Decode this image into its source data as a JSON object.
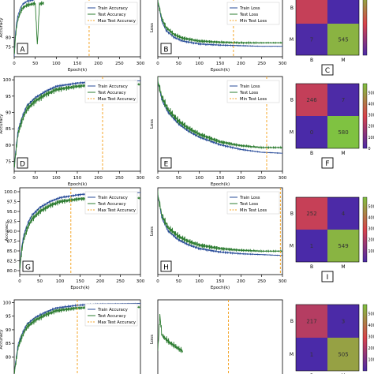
{
  "colors": {
    "train": "#2a4d9a",
    "test": "#2e7d32",
    "vline": "#f4a62a",
    "cm_high": "#7fc241",
    "cm_mid": "#d9434b",
    "cm_low": "#4a2aa8"
  },
  "chart_data": [
    {
      "id": "A",
      "type": "line",
      "panel_label": "A",
      "xlabel": "Epoch(k)",
      "ylabel": "Accuracy",
      "xlim": [
        0,
        300
      ],
      "ylim": [
        70,
        100
      ],
      "xticks": [
        "0",
        "50",
        "100",
        "150",
        "200",
        "250",
        "300"
      ],
      "yticks": [
        "75",
        "80"
      ],
      "legend": [
        "Train Accuracy",
        "Test Accuracy",
        "Max Test Accuracy"
      ],
      "vline_x": 178,
      "series": [
        {
          "name": "Train Accuracy",
          "x": [
            0,
            3,
            6,
            10,
            15,
            20,
            30,
            40,
            50
          ],
          "y": [
            70,
            82,
            88,
            92,
            95,
            97,
            98.5,
            99,
            99.5
          ]
        },
        {
          "name": "Test Accuracy",
          "x": [
            0,
            3,
            6,
            10,
            15,
            20,
            30,
            40,
            50,
            55,
            60,
            65,
            70
          ],
          "y": [
            70,
            80,
            86,
            90,
            93,
            95,
            96.5,
            97,
            97.5,
            76,
            97,
            97.5,
            97.5
          ]
        }
      ]
    },
    {
      "id": "B",
      "type": "line",
      "panel_label": "B",
      "xlabel": "Epoch(k)",
      "ylabel": "Loss",
      "xlim": [
        0,
        300
      ],
      "ylim": [
        0,
        1
      ],
      "xticks": [
        "0",
        "50",
        "100",
        "150",
        "200",
        "250",
        "300"
      ],
      "yticks": [],
      "legend": [
        "Train Loss",
        "Test Loss",
        "Min Test Loss"
      ],
      "vline_x": 182,
      "series": [
        {
          "name": "Train Loss",
          "x": [
            0,
            10,
            20,
            40,
            60,
            100,
            150,
            200,
            250,
            300
          ],
          "y": [
            0.95,
            0.6,
            0.45,
            0.33,
            0.27,
            0.22,
            0.2,
            0.19,
            0.18,
            0.18
          ]
        },
        {
          "name": "Test Loss",
          "x": [
            0,
            10,
            20,
            40,
            60,
            100,
            150,
            200,
            250,
            300
          ],
          "y": [
            0.95,
            0.65,
            0.5,
            0.38,
            0.32,
            0.27,
            0.25,
            0.24,
            0.24,
            0.24
          ]
        }
      ]
    },
    {
      "id": "C",
      "type": "heatmap",
      "panel_label": "C",
      "row_labels": [
        "B",
        "M"
      ],
      "col_labels": [
        "B",
        "M"
      ],
      "cells": [
        [
          "",
          ""
        ],
        [
          "7",
          "545"
        ]
      ],
      "values": [
        [
          250,
          0
        ],
        [
          7,
          545
        ]
      ],
      "colorbar_ticks": []
    },
    {
      "id": "D",
      "type": "line",
      "panel_label": "D",
      "xlabel": "Epoch(k)",
      "ylabel": "Accuracy",
      "xlim": [
        0,
        300
      ],
      "ylim": [
        72,
        101
      ],
      "xticks": [
        "0",
        "50",
        "100",
        "150",
        "200",
        "250",
        "300"
      ],
      "yticks": [
        "75",
        "80",
        "85",
        "90",
        "95",
        "100"
      ],
      "legend": [
        "Train Accuracy",
        "Test Accuracy",
        "Max Test Accuracy"
      ],
      "vline_x": 210,
      "series": [
        {
          "name": "Train Accuracy",
          "x": [
            0,
            5,
            10,
            20,
            30,
            50,
            75,
            100,
            150,
            200,
            250,
            300
          ],
          "y": [
            73,
            80,
            85,
            89,
            92,
            94.5,
            96.5,
            98,
            99,
            99.5,
            99.6,
            99.7
          ]
        },
        {
          "name": "Test Accuracy",
          "x": [
            0,
            5,
            10,
            20,
            30,
            50,
            75,
            100,
            150,
            200,
            250,
            300
          ],
          "y": [
            73,
            79,
            84,
            88,
            91,
            93.5,
            95.5,
            97,
            98,
            98.5,
            98.6,
            98.6
          ]
        }
      ]
    },
    {
      "id": "E",
      "type": "line",
      "panel_label": "E",
      "xlabel": "Epoch(k)",
      "ylabel": "Loss",
      "xlim": [
        0,
        300
      ],
      "ylim": [
        0,
        1
      ],
      "xticks": [
        "0",
        "50",
        "100",
        "150",
        "200",
        "250",
        "300"
      ],
      "yticks": [],
      "legend": [
        "Train Loss",
        "Test Loss",
        "Min Test Loss"
      ],
      "vline_x": 262,
      "series": [
        {
          "name": "Train Loss",
          "x": [
            0,
            10,
            25,
            50,
            75,
            100,
            150,
            200,
            250,
            300
          ],
          "y": [
            0.95,
            0.75,
            0.62,
            0.5,
            0.42,
            0.36,
            0.28,
            0.23,
            0.2,
            0.19
          ]
        },
        {
          "name": "Test Loss",
          "x": [
            0,
            10,
            25,
            50,
            75,
            100,
            150,
            200,
            250,
            300
          ],
          "y": [
            0.95,
            0.78,
            0.65,
            0.53,
            0.45,
            0.39,
            0.31,
            0.27,
            0.25,
            0.25
          ]
        }
      ]
    },
    {
      "id": "F",
      "type": "heatmap",
      "panel_label": "F",
      "row_labels": [
        "B",
        "M"
      ],
      "col_labels": [
        "B",
        "M"
      ],
      "cells": [
        [
          "246",
          "7"
        ],
        [
          "0",
          "580"
        ]
      ],
      "values": [
        [
          246,
          7
        ],
        [
          0,
          580
        ]
      ],
      "colorbar_ticks": [
        "500",
        "400",
        "300",
        "200",
        "100",
        "0"
      ]
    },
    {
      "id": "G",
      "type": "line",
      "panel_label": "G",
      "xlabel": "Epoch(k)",
      "ylabel": "Accuracy",
      "xlim": [
        0,
        300
      ],
      "ylim": [
        79,
        101
      ],
      "xticks": [
        "0",
        "50",
        "100",
        "150",
        "200",
        "250",
        "300"
      ],
      "yticks": [
        "80.0",
        "82.5",
        "85.0",
        "87.5",
        "90.0",
        "92.5",
        "95.0",
        "97.5",
        "100.0"
      ],
      "legend": [
        "Train Accuracy",
        "Test Accuracy",
        "Max Test Accuracy"
      ],
      "vline_x": 127,
      "series": [
        {
          "name": "Train Accuracy",
          "x": [
            0,
            5,
            10,
            20,
            30,
            50,
            75,
            100,
            150,
            200,
            250,
            300
          ],
          "y": [
            80.5,
            86,
            89,
            92,
            94,
            96,
            97.5,
            98.5,
            99.3,
            99.6,
            99.7,
            99.8
          ]
        },
        {
          "name": "Test Accuracy",
          "x": [
            0,
            5,
            10,
            20,
            30,
            50,
            75,
            100,
            150,
            200,
            250,
            300
          ],
          "y": [
            80.5,
            85,
            88,
            91,
            93,
            95,
            96.5,
            97.5,
            98.2,
            98.4,
            98.4,
            98.4
          ]
        }
      ]
    },
    {
      "id": "H",
      "type": "line",
      "panel_label": "H",
      "xlabel": "Epoch(k)",
      "ylabel": "Loss",
      "xlim": [
        0,
        300
      ],
      "ylim": [
        0,
        1
      ],
      "xticks": [
        "0",
        "50",
        "100",
        "150",
        "200",
        "250",
        "300"
      ],
      "yticks": [],
      "legend": [
        "Train Loss",
        "Test Loss",
        "Min Test Loss"
      ],
      "vline_x": 295,
      "series": [
        {
          "name": "Train Loss",
          "x": [
            0,
            10,
            25,
            50,
            75,
            100,
            150,
            200,
            250,
            300
          ],
          "y": [
            0.92,
            0.65,
            0.5,
            0.4,
            0.34,
            0.3,
            0.26,
            0.24,
            0.23,
            0.22
          ]
        },
        {
          "name": "Test Loss",
          "x": [
            0,
            10,
            25,
            50,
            75,
            100,
            150,
            200,
            250,
            300
          ],
          "y": [
            0.92,
            0.68,
            0.54,
            0.44,
            0.38,
            0.34,
            0.3,
            0.28,
            0.27,
            0.27
          ]
        }
      ]
    },
    {
      "id": "I",
      "type": "heatmap",
      "panel_label": "I",
      "row_labels": [
        "B",
        "M"
      ],
      "col_labels": [
        "B",
        "M"
      ],
      "cells": [
        [
          "252",
          "4"
        ],
        [
          "1",
          "549"
        ]
      ],
      "values": [
        [
          252,
          4
        ],
        [
          1,
          549
        ]
      ],
      "colorbar_ticks": [
        "500",
        "400",
        "300",
        "200",
        "100"
      ]
    },
    {
      "id": "J",
      "type": "line",
      "panel_label": "",
      "xlabel": "",
      "ylabel": "Accuracy",
      "xlim": [
        0,
        300
      ],
      "ylim": [
        72,
        101
      ],
      "xticks": [],
      "yticks": [
        "80",
        "85",
        "90",
        "95",
        "100"
      ],
      "legend": [
        "Train Accuracy",
        "Test Accuracy",
        "Max Test Accuracy"
      ],
      "vline_x": 150,
      "series": [
        {
          "name": "Train Accuracy",
          "x": [
            0,
            5,
            10,
            20,
            30,
            50,
            75,
            100,
            150,
            200,
            250,
            300
          ],
          "y": [
            74,
            80,
            85,
            89,
            92,
            94.5,
            96.5,
            98,
            99,
            99.5,
            99.6,
            99.7
          ]
        },
        {
          "name": "Test Accuracy",
          "x": [
            0,
            5,
            10,
            20,
            30,
            50,
            75,
            100,
            150,
            200,
            250,
            300
          ],
          "y": [
            74,
            79,
            84,
            88,
            91,
            93.5,
            95.5,
            97,
            98,
            98.2,
            98.3,
            98.3
          ]
        }
      ]
    },
    {
      "id": "K",
      "type": "line",
      "panel_label": "",
      "xlabel": "",
      "ylabel": "Loss",
      "xlim": [
        0,
        300
      ],
      "ylim": [
        0,
        1
      ],
      "xticks": [],
      "yticks": [],
      "legend": [],
      "vline_x": 170,
      "series": [
        {
          "name": "Test Loss",
          "x": [
            0,
            5,
            10,
            20,
            30,
            40,
            50,
            60
          ],
          "y": [
            0.35,
            0.8,
            0.55,
            0.5,
            0.45,
            0.42,
            0.38,
            0.35
          ]
        }
      ]
    },
    {
      "id": "L",
      "type": "heatmap",
      "panel_label": "",
      "row_labels": [
        "B",
        "M"
      ],
      "col_labels": [
        "B",
        "M"
      ],
      "cells": [
        [
          "217",
          "3"
        ],
        [
          "1",
          "505"
        ]
      ],
      "values": [
        [
          217,
          3
        ],
        [
          1,
          505
        ]
      ],
      "colorbar_ticks": [
        "500",
        "400",
        "300",
        "200",
        "100"
      ]
    }
  ]
}
